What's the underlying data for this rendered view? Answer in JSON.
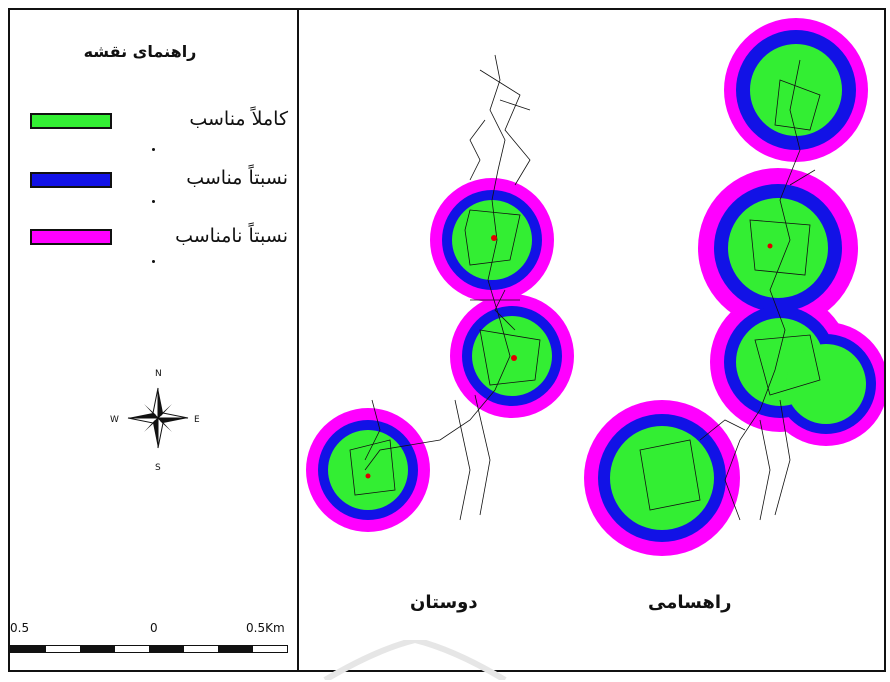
{
  "legend": {
    "title": "راهنمای نقشه",
    "items": [
      {
        "label": "کاملاً مناسب",
        "color": "#33ee33"
      },
      {
        "label": "نسبتاً مناسب",
        "color": "#1212e6"
      },
      {
        "label": "نسبتاً نامناسب",
        "color": "#ff00ff"
      }
    ]
  },
  "compass": {
    "n": "N",
    "s": "S",
    "e": "E",
    "w": "W"
  },
  "scale": {
    "left": "0.5",
    "middle": "0",
    "right": "0.5Km"
  },
  "towns": [
    {
      "name": "دوستان",
      "zones": 3
    },
    {
      "name": "راهسامی",
      "zones": 4
    }
  ],
  "colors": {
    "suitable": "#33ee33",
    "moderate": "#1212e6",
    "unsuitable": "#ff00ff",
    "ink": "#111111"
  }
}
